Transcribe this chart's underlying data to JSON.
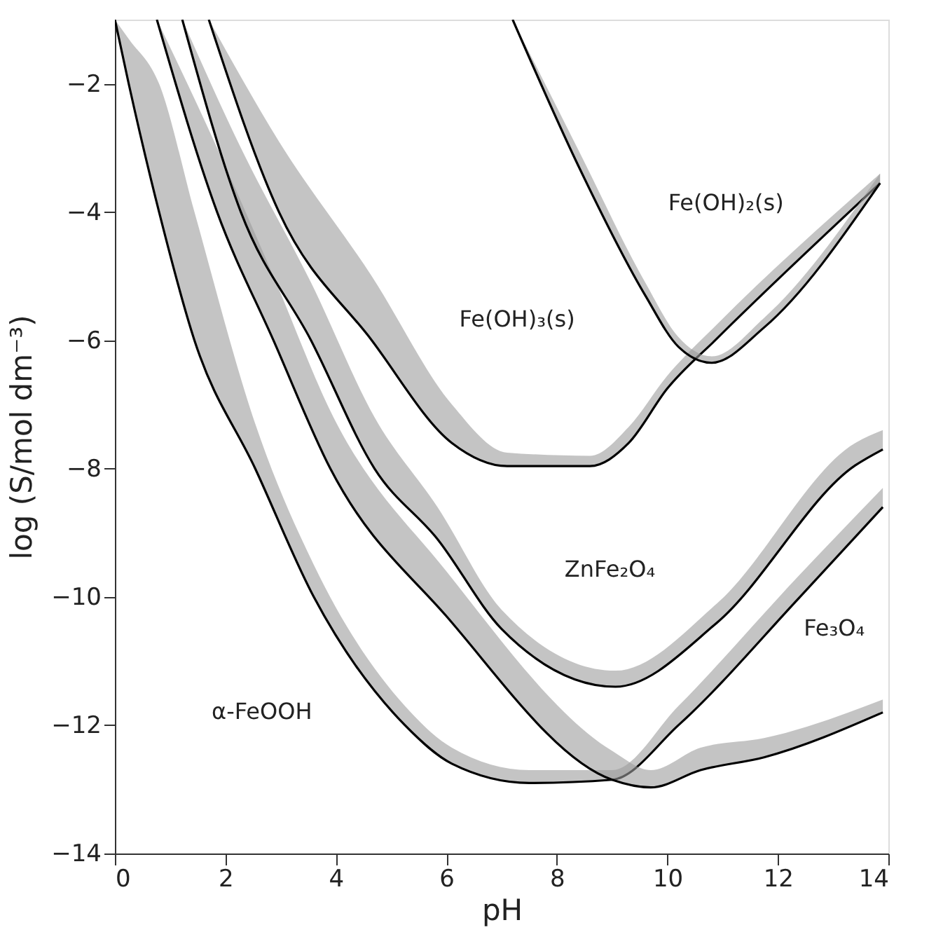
{
  "chart_data": {
    "type": "line",
    "xlabel": "pH",
    "ylabel": "log (S/mol dm⁻³)",
    "xlim": [
      0,
      14
    ],
    "ylim": [
      -14,
      -1
    ],
    "xticks": [
      0,
      2,
      4,
      6,
      8,
      10,
      12,
      14
    ],
    "yticks": [
      -14,
      -12,
      -10,
      -8,
      -6,
      -4,
      -2
    ],
    "grid": false,
    "line_style": "solid",
    "series": [
      {
        "color": "#000000",
        "x": [
          0,
          0.25,
          0.8,
          1.44,
          2.54,
          3.6,
          5.25,
          6.1,
          7.5,
          9,
          10.2,
          12.4,
          13.9
        ],
        "values": [
          -1,
          -2,
          -4,
          -6,
          -8,
          -10,
          -12,
          -12.6,
          -12.9,
          -12.85,
          -12,
          -10,
          -8.6
        ],
        "lower": [
          -1,
          -2,
          -4,
          -6,
          -8,
          -10,
          -12,
          -12.6,
          -12.9,
          -12.85,
          -12,
          -10,
          -8.6
        ],
        "upper": [
          -1,
          -1.3,
          -2,
          -4,
          -7.3,
          -9.5,
          -11.7,
          -12.35,
          -12.7,
          -12.7,
          -11.7,
          -9.65,
          -8.3
        ]
      },
      {
        "color": "#000000",
        "x": [
          0.76,
          1.85,
          2.87,
          3.9,
          6.0,
          9.0,
          9.7,
          10.6,
          11.75,
          13.9
        ],
        "values": [
          -1,
          -4,
          -6,
          -8,
          -10.3,
          -12.85,
          -12.97,
          -12.7,
          -12.5,
          -11.8
        ],
        "lower": [
          -1,
          -4,
          -6,
          -8,
          -10.3,
          -12.85,
          -12.97,
          -12.7,
          -12.5,
          -11.8
        ],
        "upper": [
          -1,
          -3,
          -5,
          -7.1,
          -9.6,
          -12.4,
          -12.7,
          -12.35,
          -12.2,
          -11.6
        ]
      },
      {
        "color": "#000000",
        "x": [
          1.22,
          2.28,
          3.55,
          4.7,
          5.84,
          7,
          9.06,
          10.9,
          13.4,
          13.9
        ],
        "values": [
          -1,
          -4,
          -6,
          -8,
          -9.1,
          -10.5,
          -11.4,
          -10.4,
          -7.95,
          -7.7
        ],
        "lower": [
          -1,
          -4,
          -6,
          -8,
          -9.1,
          -10.5,
          -11.4,
          -10.4,
          -7.95,
          -7.7
        ],
        "upper": [
          -1,
          -3,
          -5.1,
          -7.2,
          -8.6,
          -10.2,
          -11.15,
          -10.1,
          -7.6,
          -7.4
        ]
      },
      {
        "color": "#000000",
        "x": [
          1.7,
          2.97,
          4.65,
          6.1,
          7.1,
          8.6,
          9.3,
          10.0,
          10.9,
          13.85
        ],
        "values": [
          -1,
          -4,
          -6,
          -7.6,
          -7.96,
          -7.96,
          -7.6,
          -6.75,
          -5.97,
          -3.55
        ],
        "lower": [
          -1,
          -4,
          -6,
          -7.6,
          -7.96,
          -7.96,
          -7.6,
          -6.75,
          -5.97,
          -3.55
        ],
        "upper": [
          -1,
          -2.9,
          -5,
          -7,
          -7.75,
          -7.8,
          -7.35,
          -6.55,
          -5.75,
          -3.4
        ]
      },
      {
        "color": "#000000",
        "x": [
          7.2,
          8.4,
          9.6,
          10.2,
          10.8,
          11.75,
          13.85
        ],
        "values": [
          -1,
          -3.3,
          -5.3,
          -6.1,
          -6.35,
          -5.8,
          -3.55
        ],
        "lower": [
          -1,
          -3.3,
          -5.3,
          -6.1,
          -6.35,
          -5.8,
          -3.55
        ],
        "upper": [
          -1,
          -3.05,
          -5.1,
          -5.95,
          -6.25,
          -5.65,
          -3.4
        ]
      }
    ],
    "annotations": [
      "Fe(OH)₂(s)",
      "Fe(OH)₃(s)",
      "ZnFe₂O₄",
      "Fe₃O₄",
      "α-FeOOH"
    ]
  }
}
